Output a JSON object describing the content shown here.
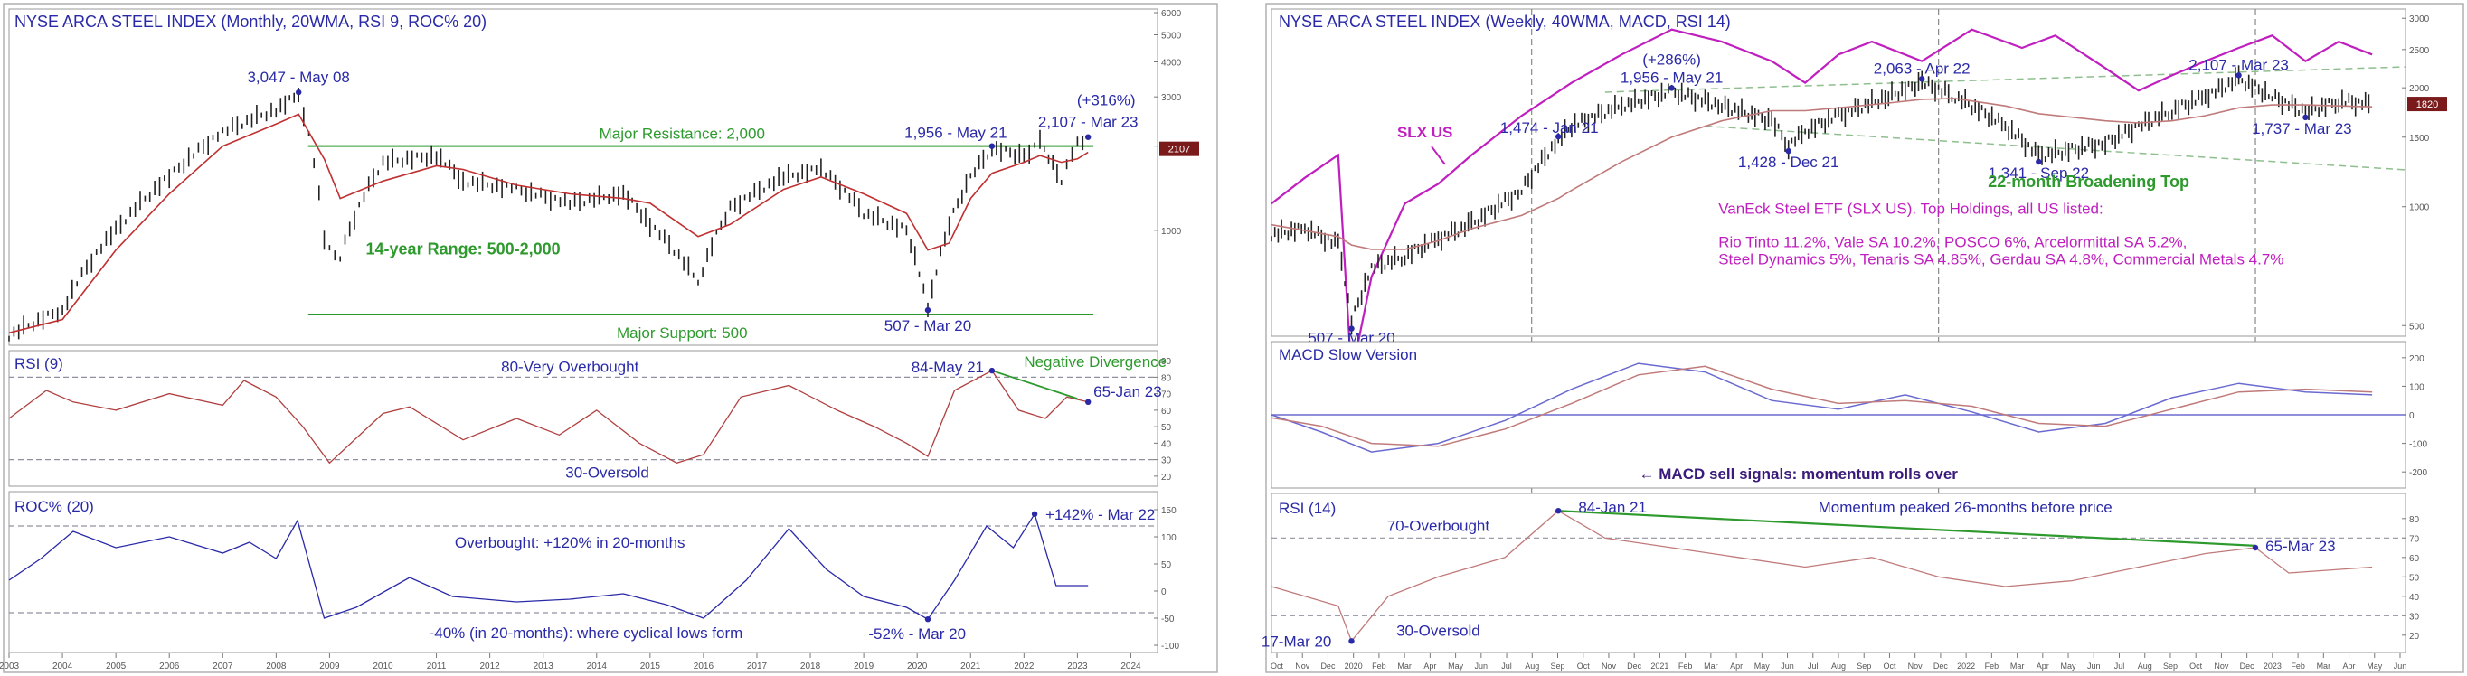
{
  "chart_data": [
    {
      "type": "line",
      "title": "NYSE ARCA STEEL INDEX (Monthly, 20WMA, RSI 9, ROC% 20)",
      "colors": {
        "price": "#222222",
        "ma": "#c03030",
        "guide": "#2e9a2e",
        "annot": "#2a2aa8",
        "rsi": "#b04040",
        "roc": "#2a2aa8"
      },
      "price_pane": {
        "scale": "log",
        "ylim": [
          400,
          6000
        ],
        "y_ticks": [
          "6000",
          "5000",
          "4000",
          "3000",
          "2000",
          "1000"
        ],
        "x": [
          2003.0,
          2004.0,
          2005.0,
          2006.0,
          2007.0,
          2008.0,
          2008.42,
          2008.9,
          2009.2,
          2010.0,
          2011.0,
          2011.5,
          2012.5,
          2013.5,
          2014.5,
          2015.0,
          2015.9,
          2016.5,
          2017.5,
          2018.2,
          2019.0,
          2019.8,
          2020.2,
          2020.6,
          2021.0,
          2021.4,
          2022.0,
          2022.3,
          2022.7,
          2023.0,
          2023.2
        ],
        "values": [
          420,
          520,
          1000,
          1550,
          2250,
          2700,
          3047,
          900,
          800,
          1750,
          1850,
          1500,
          1400,
          1250,
          1350,
          1050,
          650,
          1200,
          1550,
          1650,
          1150,
          1000,
          507,
          1050,
          1550,
          1956,
          1850,
          2063,
          1500,
          2050,
          2107
        ],
        "ma_values": [
          430,
          480,
          850,
          1350,
          2000,
          2400,
          2600,
          1800,
          1300,
          1500,
          1700,
          1650,
          1450,
          1350,
          1300,
          1250,
          950,
          1050,
          1400,
          1550,
          1350,
          1150,
          850,
          900,
          1300,
          1600,
          1750,
          1850,
          1750,
          1800,
          1900
        ],
        "levels": [
          {
            "label": "Major Resistance: 2,000",
            "value": 2000
          },
          {
            "label": "Major Support: 500",
            "value": 500
          }
        ],
        "range_label": "14-year Range: 500-2,000",
        "annotations": [
          {
            "text": "3,047 - May 08",
            "x": 2008.42,
            "y": 3047
          },
          {
            "text": "1,956 - May 21",
            "x": 2021.4,
            "y": 1956
          },
          {
            "text": "2,107 - Mar 23",
            "x": 2023.2,
            "y": 2107
          },
          {
            "text": "(+316%)",
            "x": 2023.2,
            "y": 2107
          },
          {
            "text": "507 - Mar 20",
            "x": 2020.2,
            "y": 507
          }
        ],
        "last_badge": "2107"
      },
      "rsi_pane": {
        "title": "RSI (9)",
        "ylim": [
          15,
          95
        ],
        "y_ticks": [
          "90",
          "80",
          "70",
          "60",
          "50",
          "40",
          "30",
          "20"
        ],
        "overbought": {
          "value": 80,
          "label": "80-Very Overbought"
        },
        "oversold": {
          "value": 30,
          "label": "30-Oversold"
        },
        "x": [
          2003.0,
          2003.7,
          2004.2,
          2005.0,
          2006.0,
          2007.0,
          2007.4,
          2008.0,
          2008.5,
          2009.0,
          2010.0,
          2010.5,
          2011.5,
          2012.5,
          2013.3,
          2014.0,
          2014.8,
          2015.5,
          2016.0,
          2016.7,
          2017.6,
          2018.5,
          2019.2,
          2019.8,
          2020.2,
          2020.7,
          2021.4,
          2021.9,
          2022.4,
          2022.8,
          2023.2
        ],
        "values": [
          55,
          72,
          65,
          60,
          70,
          63,
          78,
          68,
          50,
          28,
          58,
          62,
          42,
          55,
          45,
          60,
          40,
          28,
          33,
          68,
          75,
          60,
          50,
          40,
          32,
          72,
          84,
          60,
          55,
          68,
          65
        ],
        "annotations": [
          {
            "text": "84-May 21",
            "x": 2021.4,
            "y": 84
          },
          {
            "text": "65-Jan 23",
            "x": 2023.2,
            "y": 65
          },
          {
            "text": "Negative Divergence",
            "x": 2022.3,
            "y": 82
          }
        ]
      },
      "roc_pane": {
        "title": "ROC% (20)",
        "ylim": [
          -110,
          180
        ],
        "y_ticks": [
          "150",
          "100",
          "50",
          "0",
          "-50",
          "-100"
        ],
        "overbought": {
          "value": 120,
          "label": "Overbought: +120% in 20-months"
        },
        "oversold": {
          "value": -40,
          "label": "-40% (in 20-months): where cyclical lows form"
        },
        "x": [
          2003.0,
          2003.6,
          2004.2,
          2005.0,
          2006.0,
          2007.0,
          2007.5,
          2008.0,
          2008.4,
          2008.9,
          2009.5,
          2010.5,
          2011.3,
          2012.5,
          2013.5,
          2014.5,
          2015.3,
          2016.0,
          2016.8,
          2017.6,
          2018.3,
          2019.0,
          2019.8,
          2020.2,
          2020.7,
          2021.3,
          2021.8,
          2022.2,
          2022.6,
          2023.2
        ],
        "values": [
          20,
          60,
          110,
          80,
          100,
          70,
          90,
          60,
          130,
          -50,
          -30,
          25,
          -10,
          -20,
          -15,
          -5,
          -25,
          -50,
          20,
          115,
          40,
          -10,
          -30,
          -52,
          20,
          120,
          80,
          142,
          10,
          10
        ],
        "annotations": [
          {
            "text": "+142% - Mar 22",
            "x": 2022.2,
            "y": 142
          },
          {
            "text": "-52% - Mar 20",
            "x": 2020.2,
            "y": -52
          }
        ]
      },
      "x_axis": {
        "xlim": [
          2003,
          2024.5
        ],
        "tick_labels": [
          "2003",
          "2004",
          "2005",
          "2006",
          "2007",
          "2008",
          "2009",
          "2010",
          "2011",
          "2012",
          "2013",
          "2014",
          "2015",
          "2016",
          "2017",
          "2018",
          "2019",
          "2020",
          "2021",
          "2022",
          "2023",
          "2024"
        ]
      }
    },
    {
      "type": "line",
      "title": "NYSE ARCA STEEL INDEX (Weekly, 40WMA, MACD, RSI 14)",
      "colors": {
        "price": "#222222",
        "ma": "#c07a7a",
        "slx": "#c01fc0",
        "guide": "#2e9a2e",
        "annot": "#2a2aa8",
        "macd": "#6a6ad0",
        "signal": "#c07a7a",
        "rsi": "#c07a7a",
        "vline": "#888888"
      },
      "series": [
        {
          "name": "SLX US",
          "x": [
            0.0,
            0.1,
            0.2,
            0.24,
            0.3,
            0.4,
            0.5,
            0.6,
            0.75,
            0.9,
            1.05,
            1.2,
            1.35,
            1.5,
            1.6,
            1.7,
            1.8,
            1.95,
            2.1,
            2.25,
            2.35,
            2.5,
            2.6,
            2.7,
            2.8,
            2.9,
            3.0,
            3.1,
            3.2,
            3.3
          ],
          "values": [
            1500,
            1700,
            1900,
            650,
            1050,
            1500,
            1650,
            1900,
            2300,
            2700,
            3100,
            3500,
            3300,
            3000,
            2700,
            3100,
            3300,
            3000,
            3500,
            3200,
            3400,
            2900,
            2600,
            2800,
            3000,
            3200,
            3400,
            3000,
            3300,
            3100
          ]
        }
      ],
      "price_pane": {
        "scale": "log",
        "ylim": [
          480,
          3100
        ],
        "y_ticks": [
          "3000",
          "2500",
          "2000",
          "1500",
          "1000",
          "500"
        ],
        "x": [
          0.0,
          0.1,
          0.2,
          0.24,
          0.3,
          0.4,
          0.5,
          0.6,
          0.75,
          0.86,
          0.9,
          1.05,
          1.2,
          1.35,
          1.5,
          1.55,
          1.6,
          1.7,
          1.85,
          1.95,
          2.05,
          2.2,
          2.3,
          2.5,
          2.6,
          2.7,
          2.8,
          2.9,
          3.0,
          3.1,
          3.2,
          3.3
        ],
        "values": [
          850,
          880,
          800,
          507,
          700,
          750,
          830,
          900,
          1100,
          1474,
          1600,
          1800,
          1956,
          1800,
          1650,
          1428,
          1550,
          1700,
          1900,
          2063,
          1900,
          1600,
          1341,
          1450,
          1600,
          1750,
          1900,
          2107,
          1900,
          1737,
          1850,
          1820
        ],
        "ma_values": [
          900,
          870,
          840,
          800,
          780,
          780,
          820,
          880,
          950,
          1050,
          1100,
          1300,
          1500,
          1650,
          1750,
          1750,
          1750,
          1780,
          1830,
          1870,
          1880,
          1800,
          1720,
          1650,
          1630,
          1650,
          1700,
          1780,
          1810,
          1810,
          1800,
          1790
        ],
        "annotations": [
          {
            "text": "1,474 - Jan 21",
            "x": 0.86,
            "y": 1474
          },
          {
            "text": "(+286%)",
            "x": 1.2,
            "y": 1956
          },
          {
            "text": "1,956 - May 21",
            "x": 1.2,
            "y": 1956
          },
          {
            "text": "2,063 - Apr 22",
            "x": 1.95,
            "y": 2063
          },
          {
            "text": "2,107 - Mar 23",
            "x": 2.9,
            "y": 2107
          },
          {
            "text": "1,737 - Mar 23",
            "x": 3.1,
            "y": 1737
          },
          {
            "text": "1,428 - Dec 21",
            "x": 1.55,
            "y": 1428
          },
          {
            "text": "1,341 - Sep 22",
            "x": 2.3,
            "y": 1341
          },
          {
            "text": "507 - Mar 20",
            "x": 0.24,
            "y": 507
          }
        ],
        "pattern_label": "22-month Broadening Top",
        "series_label": "SLX US",
        "etf_info": "VanEck Steel ETF (SLX US). Top Holdings, all US listed:",
        "holdings_line1": "Rio Tinto 11.2%, Vale SA 10.2%, POSCO 6%, Arcelormittal SA 5.2%,",
        "holdings_line2": "Steel Dynamics 5%, Tenaris SA 4.85%, Gerdau SA 4.8%, Commercial Metals 4.7%",
        "last_badge": "1820"
      },
      "macd_pane": {
        "title": "MACD Slow Version",
        "ylim": [
          -250,
          250
        ],
        "y_ticks": [
          "200",
          "100",
          "0",
          "-100",
          "-200"
        ],
        "x": [
          0.0,
          0.15,
          0.3,
          0.5,
          0.7,
          0.9,
          1.1,
          1.3,
          1.5,
          1.7,
          1.9,
          2.1,
          2.3,
          2.5,
          2.7,
          2.9,
          3.1,
          3.3
        ],
        "macd": [
          0,
          -60,
          -130,
          -100,
          -20,
          90,
          180,
          150,
          50,
          20,
          70,
          10,
          -60,
          -30,
          60,
          110,
          80,
          70
        ],
        "signal": [
          -10,
          -40,
          -100,
          -110,
          -50,
          40,
          140,
          170,
          90,
          40,
          50,
          30,
          -30,
          -40,
          20,
          80,
          90,
          80
        ],
        "sell_label": "← MACD sell signals: momentum rolls over"
      },
      "rsi_pane": {
        "title": "RSI (14)",
        "ylim": [
          12,
          92
        ],
        "y_ticks": [
          "80",
          "70",
          "60",
          "50",
          "40",
          "30",
          "20"
        ],
        "overbought": {
          "value": 70,
          "label": "70-Overbought"
        },
        "oversold": {
          "value": 30,
          "label": "30-Oversold"
        },
        "x": [
          0.0,
          0.1,
          0.2,
          0.24,
          0.35,
          0.5,
          0.7,
          0.86,
          1.0,
          1.2,
          1.4,
          1.6,
          1.8,
          2.0,
          2.2,
          2.4,
          2.6,
          2.8,
          2.95,
          3.05,
          3.3
        ],
        "values": [
          45,
          40,
          35,
          17,
          40,
          50,
          60,
          84,
          70,
          65,
          60,
          55,
          60,
          50,
          45,
          48,
          55,
          62,
          65,
          52,
          55
        ],
        "annotations": [
          {
            "text": "84-Jan 21",
            "x": 0.86,
            "y": 84
          },
          {
            "text": "65-Mar 23",
            "x": 2.95,
            "y": 65
          },
          {
            "text": "17-Mar 20",
            "x": 0.24,
            "y": 17
          },
          {
            "text": "Momentum peaked 26-months before price",
            "x": 2.0,
            "y": 84
          }
        ]
      },
      "x_axis": {
        "xlim": [
          0,
          3.4
        ],
        "tick_labels": [
          "Oct",
          "Nov",
          "Dec",
          "2020",
          "Feb",
          "Mar",
          "Apr",
          "May",
          "Jun",
          "Jul",
          "Aug",
          "Sep",
          "Oct",
          "Nov",
          "Dec",
          "2021",
          "Feb",
          "Mar",
          "Apr",
          "May",
          "Jun",
          "Jul",
          "Aug",
          "Sep",
          "Oct",
          "Nov",
          "Dec",
          "2022",
          "Feb",
          "Mar",
          "Apr",
          "May",
          "Jun",
          "Jul",
          "Aug",
          "Sep",
          "Oct",
          "Nov",
          "Dec",
          "2023",
          "Feb",
          "Mar",
          "Apr",
          "May",
          "Jun"
        ]
      },
      "vlines": [
        0.78,
        2.0,
        2.95
      ]
    }
  ]
}
